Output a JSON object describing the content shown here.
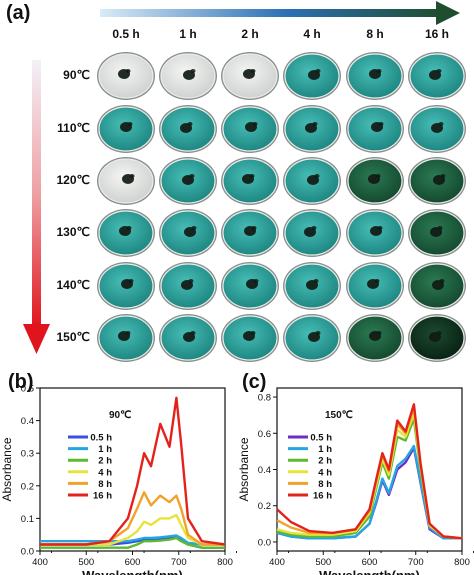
{
  "panel_a": {
    "label": "(a)",
    "columns": [
      "0.5 h",
      "1 h",
      "2 h",
      "4 h",
      "8 h",
      "16 h"
    ],
    "rows": [
      "90℃",
      "110℃",
      "120℃",
      "130℃",
      "140℃",
      "150℃"
    ],
    "colors": {
      "white": "#e5e7e6",
      "teal": "#2a9e9a",
      "dark_green": "#1c5a3a",
      "darkest": "#0f2e1c",
      "arrow_start": "#d8ecf7",
      "arrow_end": "#1e4e2e",
      "red_arrow_start": "#f3f1f7",
      "red_arrow_end": "#e0141c"
    },
    "dish_states": [
      [
        "white",
        "white",
        "white",
        "teal",
        "teal",
        "teal"
      ],
      [
        "teal",
        "teal",
        "teal",
        "teal",
        "teal",
        "teal"
      ],
      [
        "white",
        "teal",
        "teal",
        "teal",
        "dark_green",
        "dark_green"
      ],
      [
        "teal",
        "teal",
        "teal",
        "teal",
        "teal",
        "dark_green"
      ],
      [
        "teal",
        "teal",
        "teal",
        "teal",
        "teal",
        "dark_green"
      ],
      [
        "teal",
        "teal",
        "teal",
        "teal",
        "dark_green",
        "darkest"
      ]
    ]
  },
  "chart_data": [
    {
      "type": "line",
      "label": "(b)",
      "annotation": "90℃",
      "xlabel": "Wavelength(nm)",
      "ylabel": "Absorbance",
      "xlim": [
        400,
        800
      ],
      "ylim": [
        0,
        0.5
      ],
      "xticks": [
        400,
        500,
        600,
        700,
        800
      ],
      "yticks": [
        0.0,
        0.1,
        0.2,
        0.3,
        0.4,
        0.5
      ],
      "ytick_labels": [
        "0.0",
        "0.1",
        "0.2",
        "0.3",
        "0.4",
        "0.5"
      ],
      "x": [
        400,
        450,
        500,
        550,
        590,
        610,
        625,
        640,
        660,
        680,
        695,
        705,
        720,
        750,
        800
      ],
      "series": [
        {
          "name": "0.5 h",
          "color": "#3a4fe0",
          "values": [
            0.02,
            0.02,
            0.02,
            0.02,
            0.025,
            0.03,
            0.035,
            0.035,
            0.038,
            0.04,
            0.045,
            0.035,
            0.02,
            0.01,
            0.01
          ]
        },
        {
          "name": "1 h",
          "color": "#26a6e0",
          "values": [
            0.03,
            0.03,
            0.03,
            0.03,
            0.03,
            0.035,
            0.04,
            0.04,
            0.042,
            0.045,
            0.048,
            0.04,
            0.025,
            0.02,
            0.02
          ]
        },
        {
          "name": "2 h",
          "color": "#5fb82e",
          "values": [
            0.01,
            0.01,
            0.01,
            0.01,
            0.01,
            0.02,
            0.03,
            0.03,
            0.032,
            0.035,
            0.04,
            0.03,
            0.02,
            0.01,
            0.01
          ]
        },
        {
          "name": "4 h",
          "color": "#e8e33a",
          "values": [
            0.02,
            0.02,
            0.02,
            0.02,
            0.04,
            0.06,
            0.09,
            0.08,
            0.1,
            0.1,
            0.11,
            0.08,
            0.04,
            0.02,
            0.02
          ]
        },
        {
          "name": "8 h",
          "color": "#f0a22b",
          "values": [
            0.02,
            0.02,
            0.02,
            0.03,
            0.07,
            0.13,
            0.18,
            0.14,
            0.17,
            0.15,
            0.17,
            0.13,
            0.05,
            0.02,
            0.02
          ]
        },
        {
          "name": "16 h",
          "color": "#e3231b",
          "values": [
            0.02,
            0.02,
            0.02,
            0.03,
            0.1,
            0.2,
            0.3,
            0.26,
            0.39,
            0.32,
            0.47,
            0.33,
            0.1,
            0.03,
            0.02
          ]
        }
      ]
    },
    {
      "type": "line",
      "label": "(c)",
      "annotation": "150℃",
      "xlabel": "Wavelength(nm)",
      "ylabel": "Absorbance",
      "xlim": [
        400,
        800
      ],
      "ylim": [
        -0.05,
        0.85
      ],
      "xticks": [
        400,
        500,
        600,
        700,
        800
      ],
      "yticks": [
        0.0,
        0.2,
        0.4,
        0.6,
        0.8
      ],
      "ytick_labels": [
        "0.0",
        "0.2",
        "0.4",
        "0.6",
        "0.8"
      ],
      "x": [
        400,
        430,
        470,
        520,
        570,
        600,
        615,
        628,
        642,
        660,
        678,
        696,
        710,
        730,
        760,
        800
      ],
      "series": [
        {
          "name": "0.5 h",
          "color": "#6a2ec8",
          "values": [
            0.05,
            0.03,
            0.02,
            0.02,
            0.03,
            0.1,
            0.22,
            0.34,
            0.26,
            0.4,
            0.44,
            0.52,
            0.33,
            0.07,
            0.02,
            0.02
          ]
        },
        {
          "name": "1 h",
          "color": "#26a6e0",
          "values": [
            0.05,
            0.03,
            0.02,
            0.02,
            0.03,
            0.1,
            0.23,
            0.35,
            0.27,
            0.42,
            0.46,
            0.53,
            0.34,
            0.08,
            0.02,
            0.02
          ]
        },
        {
          "name": "2 h",
          "color": "#5fb82e",
          "values": [
            0.06,
            0.04,
            0.03,
            0.03,
            0.05,
            0.14,
            0.3,
            0.44,
            0.35,
            0.58,
            0.56,
            0.68,
            0.4,
            0.09,
            0.03,
            0.02
          ]
        },
        {
          "name": "4 h",
          "color": "#e8e33a",
          "values": [
            0.07,
            0.05,
            0.04,
            0.04,
            0.06,
            0.16,
            0.32,
            0.46,
            0.37,
            0.62,
            0.58,
            0.71,
            0.42,
            0.09,
            0.03,
            0.02
          ]
        },
        {
          "name": "8 h",
          "color": "#f0a22b",
          "values": [
            0.12,
            0.08,
            0.05,
            0.05,
            0.07,
            0.17,
            0.34,
            0.48,
            0.39,
            0.65,
            0.6,
            0.74,
            0.43,
            0.1,
            0.03,
            0.02
          ]
        },
        {
          "name": "16 h",
          "color": "#e3231b",
          "values": [
            0.18,
            0.11,
            0.06,
            0.05,
            0.07,
            0.18,
            0.35,
            0.49,
            0.4,
            0.67,
            0.61,
            0.76,
            0.44,
            0.1,
            0.03,
            0.02
          ]
        }
      ]
    }
  ]
}
